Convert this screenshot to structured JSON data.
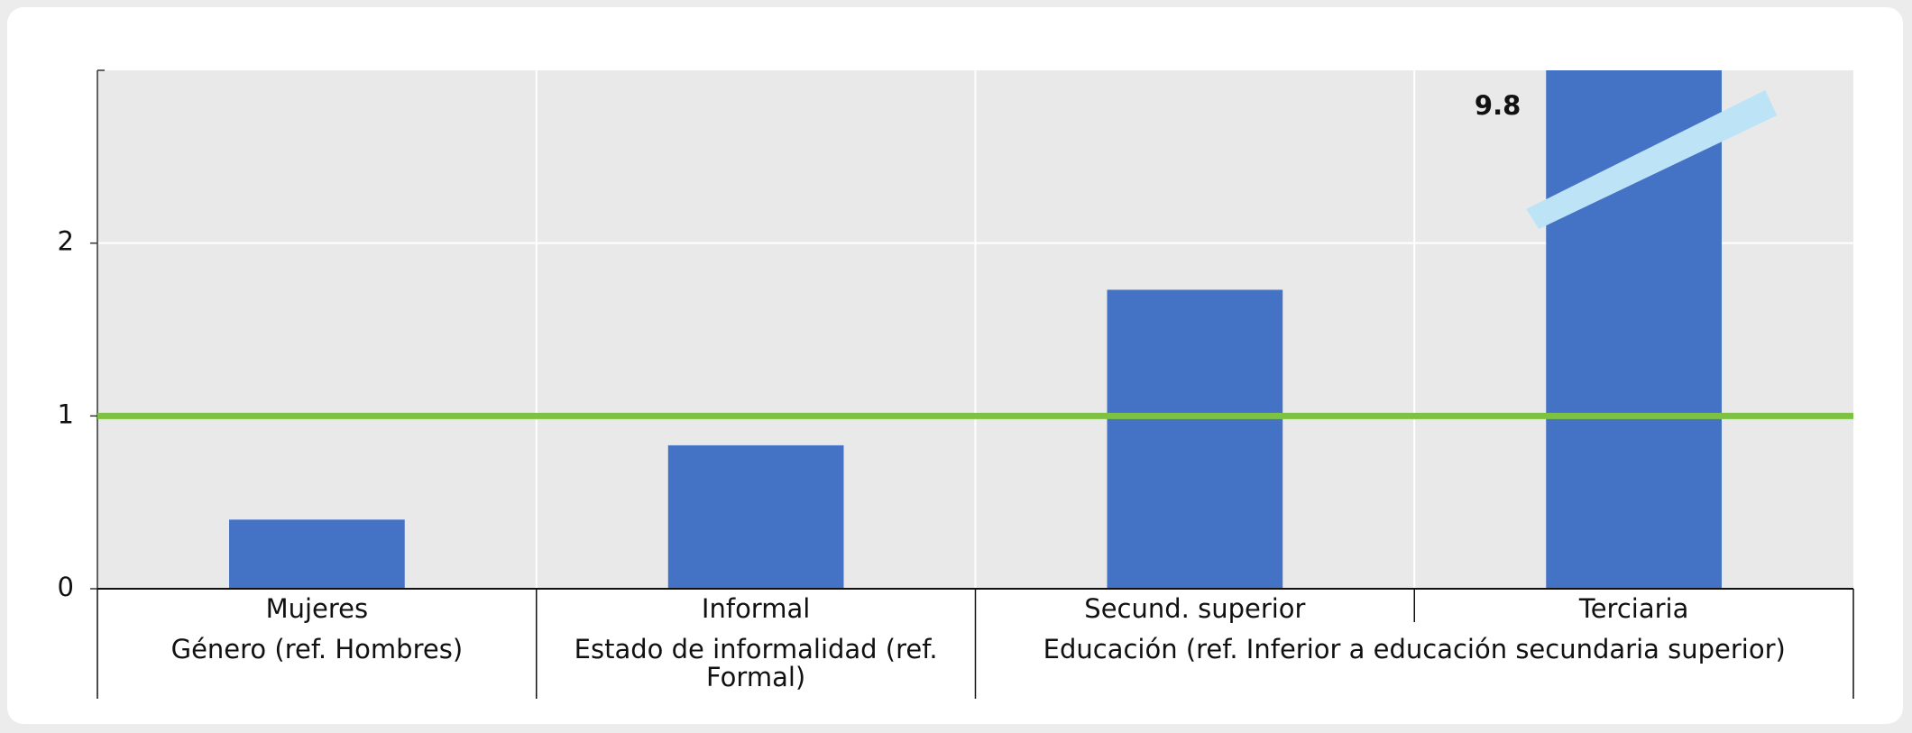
{
  "chart_data": {
    "type": "bar",
    "categories": [
      "Mujeres",
      "Informal",
      "Secund. superior",
      "Terciaria"
    ],
    "values": [
      0.4,
      0.83,
      1.73,
      9.8
    ],
    "value_labels": [
      null,
      null,
      null,
      "9.8"
    ],
    "color": "#4472c4",
    "groups": [
      {
        "name": "Género (ref. Hombres)",
        "count": 1
      },
      {
        "name": "Estado de informalidad (ref. Formal)",
        "count": 1
      },
      {
        "name": "Educación (ref. Inferior a educación secundaria superior)",
        "count": 2
      }
    ],
    "reference_line": {
      "value": 1,
      "color": "#7dc242"
    },
    "ylim": [
      0,
      3
    ],
    "yticks": [
      0,
      1,
      2
    ],
    "grid": true
  }
}
